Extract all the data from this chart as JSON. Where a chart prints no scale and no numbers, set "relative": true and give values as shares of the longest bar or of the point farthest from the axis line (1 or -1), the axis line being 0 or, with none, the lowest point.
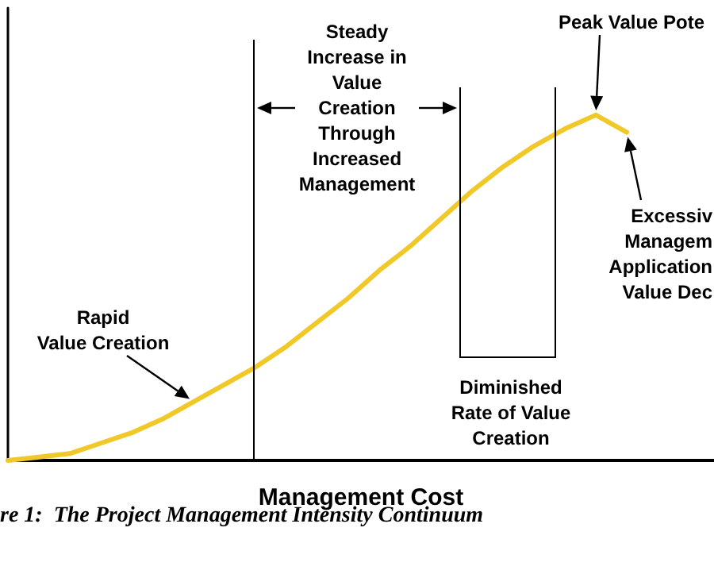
{
  "chart_data": {
    "type": "line",
    "relative": true,
    "xlabel": "Management Cost",
    "categories": [
      null,
      null,
      null,
      null,
      null,
      null,
      null,
      null,
      null,
      null,
      null,
      null,
      null,
      null,
      null,
      null,
      null,
      null,
      null,
      null,
      null
    ],
    "series": [
      {
        "color": "#f0c929",
        "values": [
          0,
          0.01,
          0.02,
          0.05,
          0.08,
          0.12,
          0.17,
          0.22,
          0.27,
          0.33,
          0.4,
          0.47,
          0.55,
          0.62,
          0.7,
          0.78,
          0.85,
          0.91,
          0.96,
          1,
          0.95
        ]
      }
    ],
    "grid": false,
    "marker": "none",
    "line_style": "solid",
    "annotations": [
      "Rapid\nValue Creation",
      "Steady\nIncrease in\nValue\nCreation\nThrough\nIncreased\nManagement",
      "Peak Value Pote",
      "Excessiv\nManagem\nApplication\nValue Dec",
      "Diminished\nRate of Value\nCreation",
      "re 1:  The Project Management Intensity Continuum"
    ]
  }
}
